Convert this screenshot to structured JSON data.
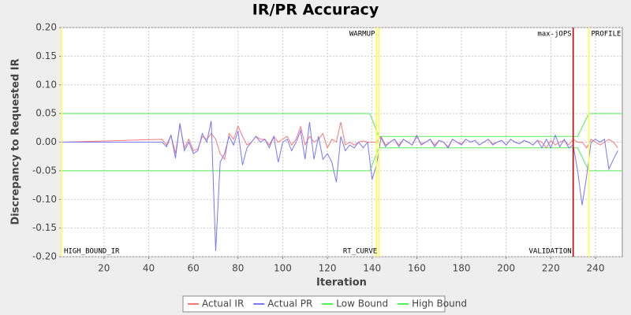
{
  "chart_data": {
    "type": "line",
    "title": "IR/PR Accuracy",
    "x_label": "Iteration",
    "y_label": "Discrepancy to Requested IR",
    "xlim": [
      1,
      252
    ],
    "ylim": [
      -0.2,
      0.2
    ],
    "xticks": [
      20,
      40,
      60,
      80,
      100,
      120,
      140,
      160,
      180,
      200,
      220,
      240
    ],
    "yticks": [
      {
        "value": -0.2,
        "label": "-0.20"
      },
      {
        "value": -0.15,
        "label": "-0.15"
      },
      {
        "value": -0.1,
        "label": "-0.10"
      },
      {
        "value": -0.05,
        "label": "-0.05"
      },
      {
        "value": 0,
        "label": "0.00"
      },
      {
        "value": 0.05,
        "label": "0.05"
      },
      {
        "value": 0.1,
        "label": "0.10"
      },
      {
        "value": 0.15,
        "label": "0.15"
      },
      {
        "value": 0.2,
        "label": "0.20"
      }
    ],
    "grid": true,
    "x": [
      1,
      46,
      48,
      50,
      52,
      54,
      56,
      58,
      60,
      62,
      64,
      66,
      68,
      70,
      72,
      74,
      76,
      78,
      80,
      82,
      84,
      86,
      88,
      90,
      92,
      94,
      96,
      98,
      100,
      102,
      104,
      106,
      108,
      110,
      112,
      114,
      116,
      118,
      120,
      122,
      124,
      126,
      128,
      130,
      132,
      134,
      136,
      138,
      140,
      142,
      144,
      146,
      148,
      150,
      152,
      154,
      156,
      158,
      160,
      162,
      164,
      166,
      168,
      170,
      172,
      174,
      176,
      178,
      180,
      182,
      184,
      186,
      188,
      190,
      192,
      194,
      196,
      198,
      200,
      202,
      204,
      206,
      208,
      210,
      212,
      214,
      216,
      218,
      220,
      222,
      224,
      226,
      228,
      230,
      232,
      234,
      236,
      238,
      240,
      242,
      244,
      246,
      248,
      250
    ],
    "series": [
      {
        "name": "Actual IR",
        "color": "#ff7777",
        "values": [
          0,
          0.005,
          -0.005,
          0.012,
          -0.02,
          0.03,
          -0.01,
          0.005,
          -0.015,
          -0.012,
          0.01,
          0.005,
          0.015,
          0.005,
          -0.02,
          -0.03,
          0.015,
          0.005,
          0.028,
          0.01,
          -0.005,
          0.0,
          0.01,
          0.005,
          0.005,
          -0.005,
          0.01,
          0.0,
          0.005,
          0.01,
          -0.005,
          0.005,
          0.027,
          -0.005,
          0.01,
          0.0,
          0.005,
          0.015,
          -0.01,
          0.005,
          0.0,
          0.035,
          -0.005,
          0.0,
          -0.005,
          0.0,
          0.002,
          0.0,
          0.0,
          0.0,
          0.01,
          -0.005,
          0.0,
          0.005,
          -0.005,
          0.005,
          0.0,
          -0.005,
          0.01,
          -0.003,
          0.0,
          0.005,
          -0.005,
          0.003,
          0.0,
          -0.008,
          0.005,
          0.0,
          -0.003,
          0.005,
          0.0,
          0.003,
          -0.005,
          0.0,
          0.005,
          -0.003,
          0.0,
          0.003,
          -0.005,
          0.005,
          0.0,
          -0.003,
          0.003,
          0.0,
          -0.005,
          0.003,
          0.0,
          -0.01,
          0.003,
          -0.005,
          0.0,
          0.003,
          -0.005,
          0.005,
          0.0,
          0.0,
          -0.01,
          0.005,
          0.0,
          -0.005,
          0.0,
          0.005,
          0.0,
          -0.01
        ]
      },
      {
        "name": "Actual PR",
        "color": "#7777ff",
        "values": [
          0,
          0.0,
          -0.008,
          0.012,
          -0.028,
          0.033,
          -0.015,
          0.0,
          -0.02,
          -0.015,
          0.015,
          0.0,
          0.037,
          -0.19,
          -0.035,
          -0.02,
          0.01,
          -0.005,
          0.02,
          -0.04,
          -0.01,
          0.0,
          0.01,
          0.0,
          0.005,
          -0.01,
          0.01,
          -0.035,
          0.0,
          0.005,
          -0.015,
          0.0,
          0.02,
          -0.03,
          0.035,
          -0.03,
          0.01,
          -0.03,
          -0.02,
          -0.035,
          -0.07,
          0.01,
          -0.015,
          -0.005,
          -0.01,
          0.0,
          -0.01,
          0.0,
          -0.065,
          -0.04,
          0.008,
          -0.008,
          0.0,
          0.005,
          -0.008,
          0.005,
          0.0,
          -0.005,
          0.012,
          -0.005,
          0.0,
          0.005,
          -0.008,
          0.003,
          0.0,
          -0.01,
          0.005,
          0.0,
          -0.005,
          0.005,
          0.0,
          0.003,
          -0.005,
          0.0,
          0.005,
          -0.005,
          0.0,
          0.003,
          -0.005,
          0.005,
          0.0,
          -0.003,
          0.003,
          0.0,
          -0.005,
          0.003,
          -0.01,
          0.005,
          -0.01,
          0.012,
          -0.008,
          0.005,
          -0.01,
          -0.005,
          -0.05,
          -0.11,
          -0.06,
          0.0,
          0.005,
          0.0,
          0.005,
          -0.047,
          -0.03,
          -0.015
        ]
      },
      {
        "name": "Low Bound",
        "color": "#55ee55",
        "x": [
          1,
          139,
          143,
          232,
          237,
          252
        ],
        "values": [
          -0.05,
          -0.05,
          -0.01,
          -0.01,
          -0.05,
          -0.05
        ]
      },
      {
        "name": "High Bound",
        "color": "#55ee55",
        "x": [
          1,
          139,
          143,
          232,
          237,
          252
        ],
        "values": [
          0.05,
          0.05,
          0.01,
          0.01,
          0.05,
          0.05
        ]
      }
    ],
    "markers": [
      {
        "label": "HIGH_BOUND_IR",
        "x": 1,
        "color": "#ffff44",
        "position": "bottom",
        "anchor": "start"
      },
      {
        "label": "WARMUP",
        "x": 142,
        "color": "#ffff44",
        "position": "top",
        "anchor": "end"
      },
      {
        "label": "RT_CURVE",
        "x": 143,
        "color": "#ffff44",
        "position": "bottom",
        "anchor": "end"
      },
      {
        "label": "max-jOPS",
        "x": 230,
        "color": "#cc0000",
        "position": "top",
        "anchor": "end"
      },
      {
        "label": "VALIDATION",
        "x": 230,
        "color": "#cc0000",
        "position": "bottom",
        "anchor": "end"
      },
      {
        "label": "PROFILE",
        "x": 237,
        "color": "#ffff44",
        "position": "top",
        "anchor": "start"
      }
    ]
  }
}
